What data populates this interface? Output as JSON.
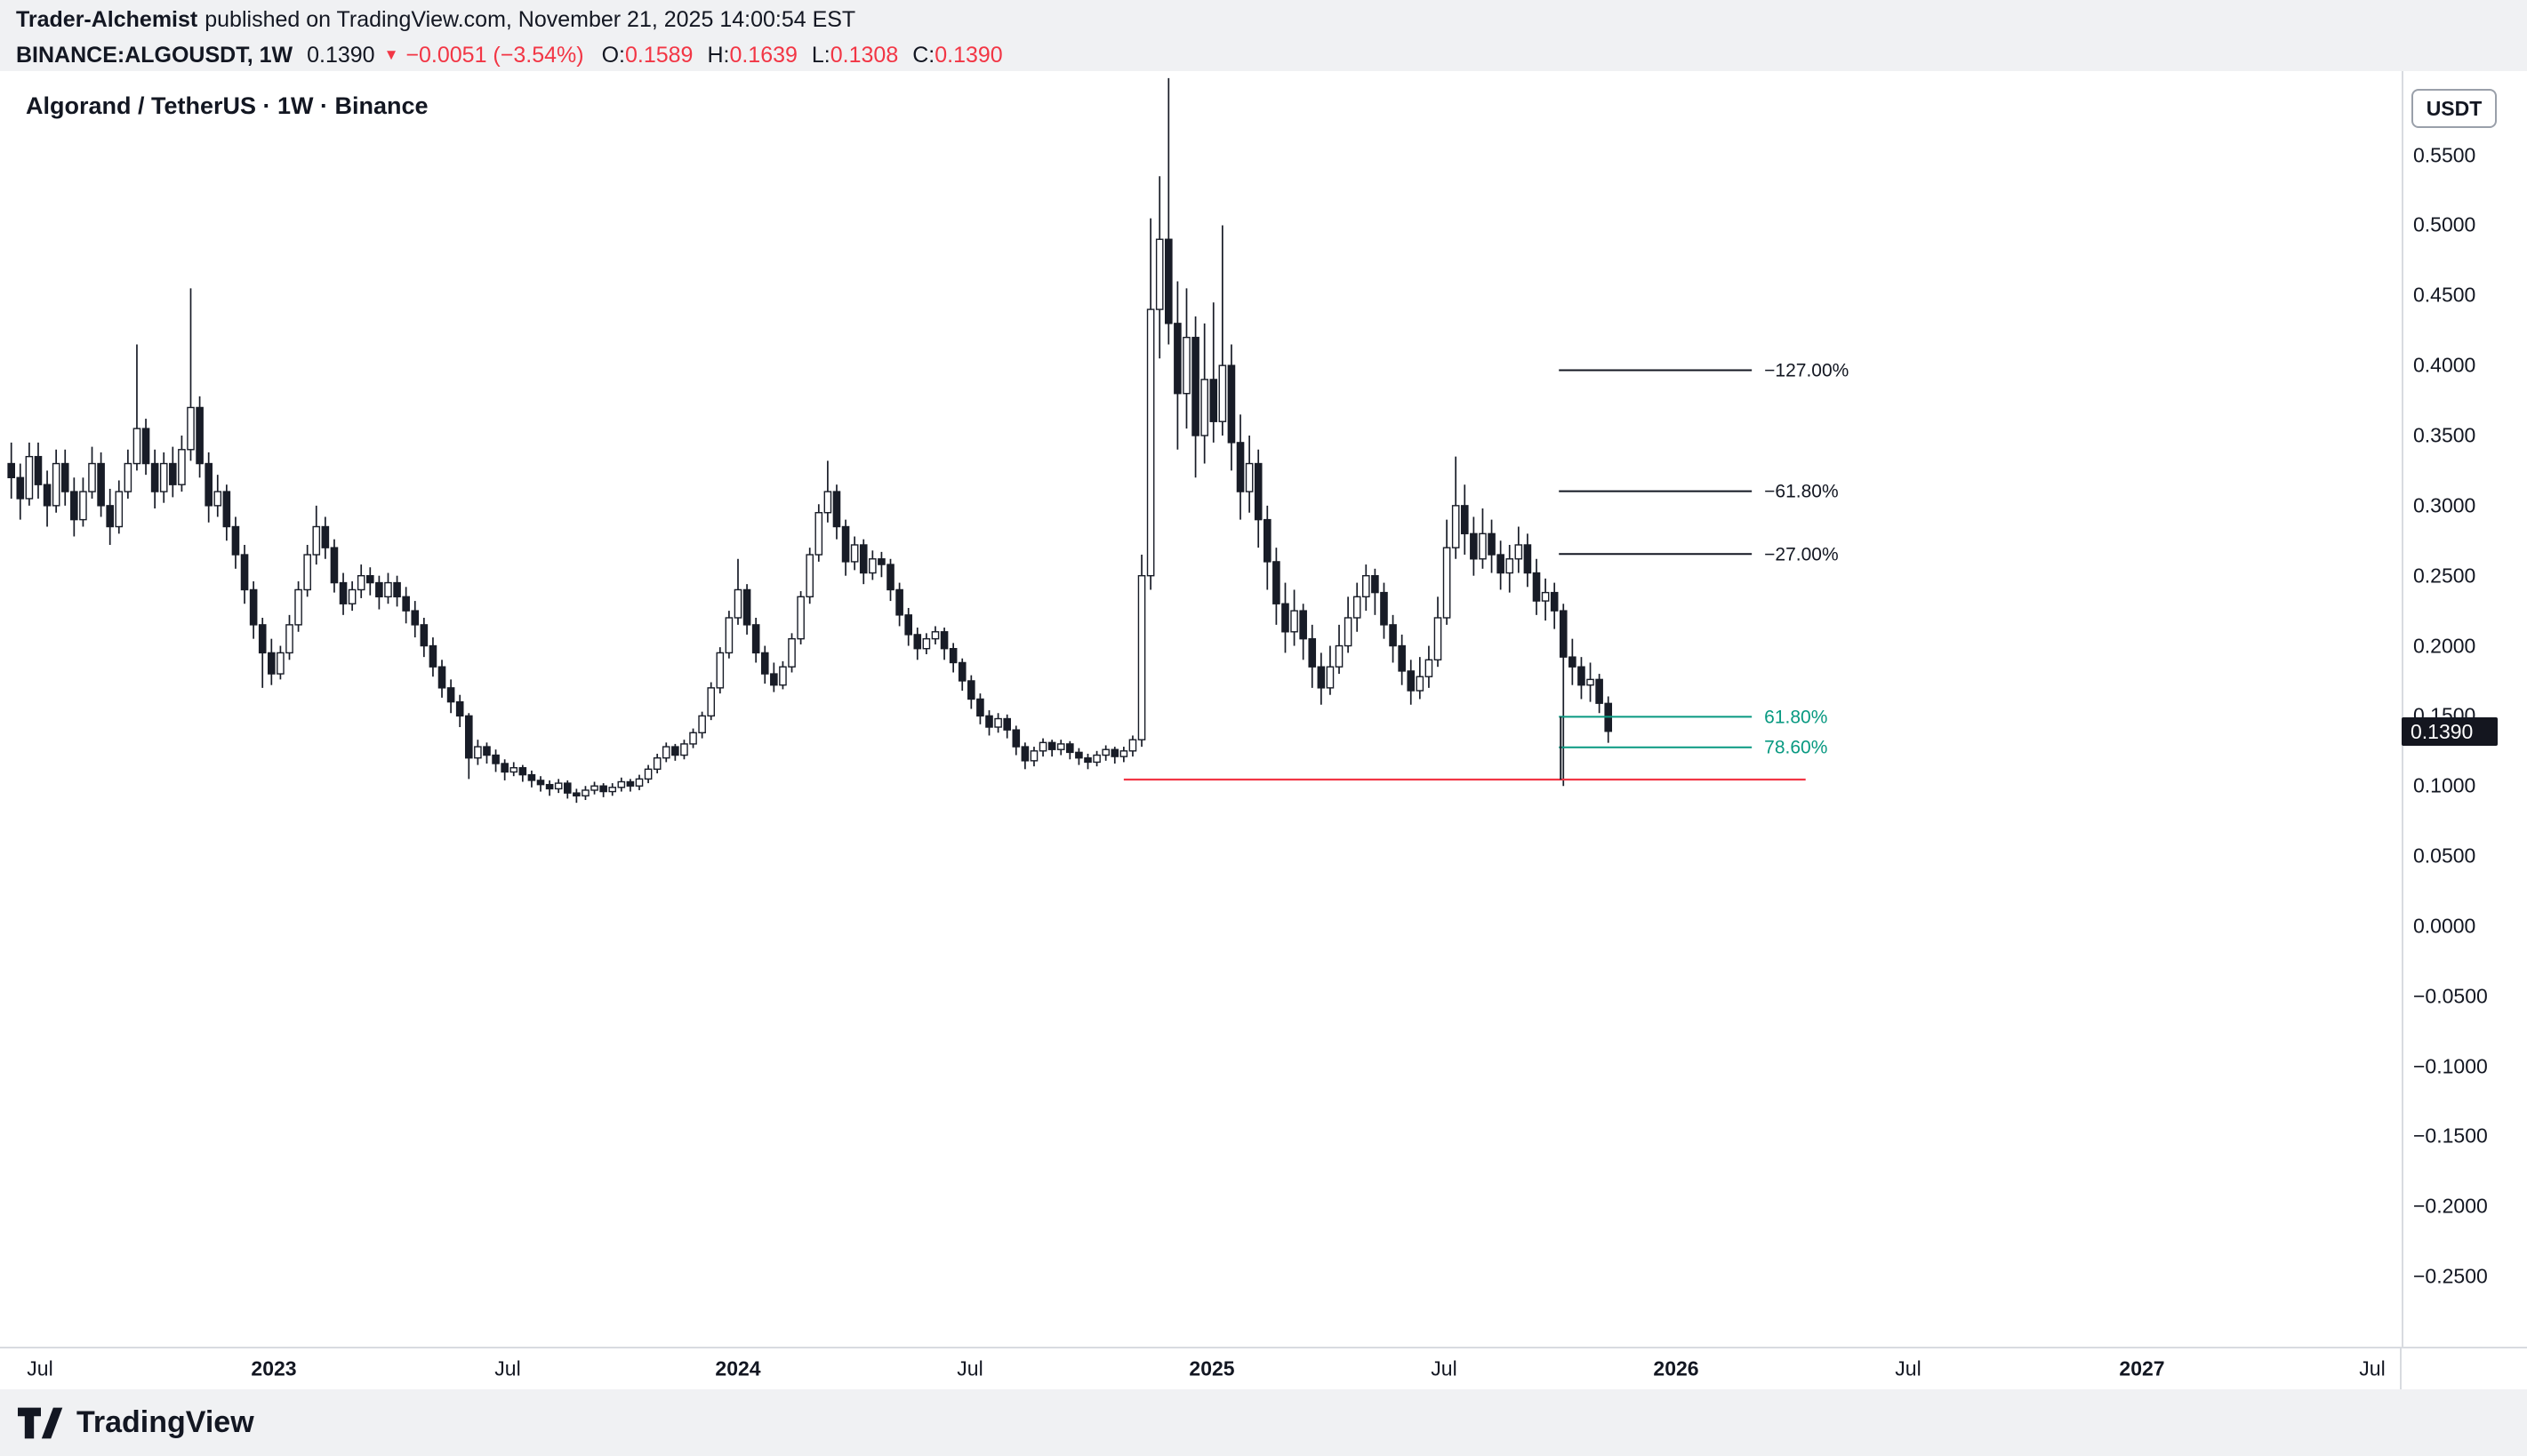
{
  "header": {
    "byline_author": "Trader-Alchemist",
    "byline_rest": "published on TradingView.com, November 21, 2025 14:00:54 EST",
    "symbol": "BINANCE:ALGOUSDT, 1W",
    "last_price": "0.1390",
    "change_icon": "▼",
    "change": "−0.0051 (−3.54%)",
    "ohlc": [
      {
        "label": "O:",
        "value": "0.1589"
      },
      {
        "label": "H:",
        "value": "0.1639"
      },
      {
        "label": "L:",
        "value": "0.1308"
      },
      {
        "label": "C:",
        "value": "0.1390"
      }
    ]
  },
  "chart": {
    "title": "Algorand / TetherUS · 1W · Binance",
    "currency_button": "USDT",
    "price_tag": "0.1390"
  },
  "axes": {
    "price_labels": [
      {
        "text": "0.5500",
        "value": 0.55
      },
      {
        "text": "0.5000",
        "value": 0.5
      },
      {
        "text": "0.4500",
        "value": 0.45
      },
      {
        "text": "0.4000",
        "value": 0.4
      },
      {
        "text": "0.3500",
        "value": 0.35
      },
      {
        "text": "0.3000",
        "value": 0.3
      },
      {
        "text": "0.2500",
        "value": 0.25
      },
      {
        "text": "0.2000",
        "value": 0.2
      },
      {
        "text": "0.1500",
        "value": 0.15
      },
      {
        "text": "0.1000",
        "value": 0.1
      },
      {
        "text": "0.0500",
        "value": 0.05
      },
      {
        "text": "0.0000",
        "value": 0.0
      },
      {
        "text": "−0.0500",
        "value": -0.05
      },
      {
        "text": "−0.1000",
        "value": -0.1
      },
      {
        "text": "−0.1500",
        "value": -0.15
      },
      {
        "text": "−0.2000",
        "value": -0.2
      },
      {
        "text": "−0.2500",
        "value": -0.25
      }
    ],
    "time_labels": [
      {
        "text": "Jul",
        "x": 45
      },
      {
        "text": "2023",
        "x": 308,
        "year": true
      },
      {
        "text": "Jul",
        "x": 571
      },
      {
        "text": "2024",
        "x": 830,
        "year": true
      },
      {
        "text": "Jul",
        "x": 1091
      },
      {
        "text": "2025",
        "x": 1363,
        "year": true
      },
      {
        "text": "Jul",
        "x": 1624
      },
      {
        "text": "2026",
        "x": 1885,
        "year": true
      },
      {
        "text": "Jul",
        "x": 2146
      },
      {
        "text": "2027",
        "x": 2409,
        "year": true
      },
      {
        "text": "Jul",
        "x": 2668
      }
    ]
  },
  "footer": {
    "brand": "TradingView"
  },
  "colors": {
    "background": "#ffffff",
    "panel": "#f0f1f3",
    "text": "#131722",
    "red": "#f23645",
    "teal": "#089981",
    "candle": "#181c27",
    "axis_border": "#d8dbe0"
  },
  "chart_data": {
    "type": "candlestick",
    "symbol": "BINANCE:ALGOUSDT",
    "timeframe": "1W",
    "title": "Algorand / TetherUS · 1W · Binance",
    "ylim": [
      -0.3,
      0.61
    ],
    "candles_ohlc": [
      [
        0.33,
        0.345,
        0.305,
        0.32
      ],
      [
        0.32,
        0.33,
        0.29,
        0.305
      ],
      [
        0.305,
        0.345,
        0.3,
        0.335
      ],
      [
        0.335,
        0.345,
        0.305,
        0.315
      ],
      [
        0.315,
        0.325,
        0.285,
        0.3
      ],
      [
        0.3,
        0.34,
        0.295,
        0.33
      ],
      [
        0.33,
        0.34,
        0.3,
        0.31
      ],
      [
        0.31,
        0.32,
        0.278,
        0.29
      ],
      [
        0.29,
        0.32,
        0.285,
        0.31
      ],
      [
        0.31,
        0.342,
        0.305,
        0.33
      ],
      [
        0.33,
        0.338,
        0.292,
        0.3
      ],
      [
        0.3,
        0.312,
        0.272,
        0.285
      ],
      [
        0.285,
        0.318,
        0.28,
        0.31
      ],
      [
        0.31,
        0.34,
        0.305,
        0.33
      ],
      [
        0.33,
        0.415,
        0.325,
        0.355
      ],
      [
        0.355,
        0.362,
        0.322,
        0.33
      ],
      [
        0.33,
        0.34,
        0.298,
        0.31
      ],
      [
        0.31,
        0.338,
        0.302,
        0.33
      ],
      [
        0.33,
        0.342,
        0.306,
        0.315
      ],
      [
        0.315,
        0.35,
        0.31,
        0.34
      ],
      [
        0.34,
        0.455,
        0.332,
        0.37
      ],
      [
        0.37,
        0.378,
        0.32,
        0.33
      ],
      [
        0.33,
        0.338,
        0.288,
        0.3
      ],
      [
        0.3,
        0.322,
        0.292,
        0.31
      ],
      [
        0.31,
        0.315,
        0.275,
        0.285
      ],
      [
        0.285,
        0.292,
        0.255,
        0.265
      ],
      [
        0.265,
        0.272,
        0.23,
        0.24
      ],
      [
        0.24,
        0.246,
        0.205,
        0.215
      ],
      [
        0.215,
        0.22,
        0.17,
        0.195
      ],
      [
        0.195,
        0.205,
        0.172,
        0.18
      ],
      [
        0.18,
        0.2,
        0.176,
        0.195
      ],
      [
        0.195,
        0.222,
        0.19,
        0.215
      ],
      [
        0.215,
        0.246,
        0.21,
        0.24
      ],
      [
        0.24,
        0.272,
        0.235,
        0.265
      ],
      [
        0.265,
        0.3,
        0.258,
        0.285
      ],
      [
        0.285,
        0.292,
        0.262,
        0.27
      ],
      [
        0.27,
        0.276,
        0.238,
        0.245
      ],
      [
        0.245,
        0.252,
        0.222,
        0.23
      ],
      [
        0.23,
        0.246,
        0.225,
        0.24
      ],
      [
        0.24,
        0.258,
        0.234,
        0.25
      ],
      [
        0.25,
        0.256,
        0.236,
        0.245
      ],
      [
        0.245,
        0.25,
        0.226,
        0.235
      ],
      [
        0.235,
        0.252,
        0.23,
        0.245
      ],
      [
        0.245,
        0.25,
        0.228,
        0.235
      ],
      [
        0.235,
        0.242,
        0.216,
        0.225
      ],
      [
        0.225,
        0.232,
        0.206,
        0.215
      ],
      [
        0.215,
        0.22,
        0.192,
        0.2
      ],
      [
        0.2,
        0.206,
        0.178,
        0.185
      ],
      [
        0.185,
        0.19,
        0.163,
        0.17
      ],
      [
        0.17,
        0.176,
        0.152,
        0.16
      ],
      [
        0.16,
        0.165,
        0.142,
        0.15
      ],
      [
        0.15,
        0.152,
        0.105,
        0.12
      ],
      [
        0.12,
        0.133,
        0.115,
        0.128
      ],
      [
        0.128,
        0.131,
        0.116,
        0.122
      ],
      [
        0.122,
        0.126,
        0.11,
        0.116
      ],
      [
        0.116,
        0.119,
        0.104,
        0.11
      ],
      [
        0.11,
        0.117,
        0.107,
        0.113
      ],
      [
        0.113,
        0.115,
        0.103,
        0.108
      ],
      [
        0.108,
        0.111,
        0.099,
        0.104
      ],
      [
        0.104,
        0.107,
        0.096,
        0.101
      ],
      [
        0.101,
        0.104,
        0.093,
        0.098
      ],
      [
        0.098,
        0.105,
        0.095,
        0.102
      ],
      [
        0.102,
        0.104,
        0.091,
        0.095
      ],
      [
        0.095,
        0.098,
        0.088,
        0.093
      ],
      [
        0.093,
        0.1,
        0.09,
        0.097
      ],
      [
        0.097,
        0.103,
        0.094,
        0.1
      ],
      [
        0.1,
        0.102,
        0.092,
        0.096
      ],
      [
        0.096,
        0.102,
        0.093,
        0.099
      ],
      [
        0.099,
        0.106,
        0.096,
        0.103
      ],
      [
        0.103,
        0.105,
        0.096,
        0.1
      ],
      [
        0.1,
        0.108,
        0.097,
        0.105
      ],
      [
        0.105,
        0.115,
        0.102,
        0.112
      ],
      [
        0.112,
        0.123,
        0.109,
        0.12
      ],
      [
        0.12,
        0.131,
        0.117,
        0.128
      ],
      [
        0.128,
        0.13,
        0.118,
        0.122
      ],
      [
        0.122,
        0.133,
        0.119,
        0.13
      ],
      [
        0.13,
        0.141,
        0.127,
        0.138
      ],
      [
        0.138,
        0.153,
        0.134,
        0.15
      ],
      [
        0.15,
        0.174,
        0.147,
        0.17
      ],
      [
        0.17,
        0.199,
        0.166,
        0.195
      ],
      [
        0.195,
        0.225,
        0.191,
        0.22
      ],
      [
        0.22,
        0.262,
        0.215,
        0.24
      ],
      [
        0.24,
        0.244,
        0.208,
        0.215
      ],
      [
        0.215,
        0.22,
        0.188,
        0.195
      ],
      [
        0.195,
        0.2,
        0.173,
        0.18
      ],
      [
        0.18,
        0.188,
        0.167,
        0.172
      ],
      [
        0.172,
        0.189,
        0.169,
        0.185
      ],
      [
        0.185,
        0.209,
        0.181,
        0.205
      ],
      [
        0.205,
        0.239,
        0.201,
        0.235
      ],
      [
        0.235,
        0.27,
        0.23,
        0.265
      ],
      [
        0.265,
        0.301,
        0.26,
        0.295
      ],
      [
        0.295,
        0.332,
        0.288,
        0.31
      ],
      [
        0.31,
        0.315,
        0.276,
        0.285
      ],
      [
        0.285,
        0.29,
        0.25,
        0.26
      ],
      [
        0.26,
        0.278,
        0.254,
        0.272
      ],
      [
        0.272,
        0.276,
        0.244,
        0.252
      ],
      [
        0.252,
        0.268,
        0.247,
        0.262
      ],
      [
        0.262,
        0.267,
        0.249,
        0.258
      ],
      [
        0.258,
        0.262,
        0.232,
        0.24
      ],
      [
        0.24,
        0.245,
        0.214,
        0.222
      ],
      [
        0.222,
        0.227,
        0.2,
        0.208
      ],
      [
        0.208,
        0.213,
        0.19,
        0.198
      ],
      [
        0.198,
        0.209,
        0.194,
        0.205
      ],
      [
        0.205,
        0.214,
        0.201,
        0.21
      ],
      [
        0.21,
        0.213,
        0.19,
        0.198
      ],
      [
        0.198,
        0.202,
        0.181,
        0.188
      ],
      [
        0.188,
        0.191,
        0.168,
        0.175
      ],
      [
        0.175,
        0.179,
        0.155,
        0.162
      ],
      [
        0.162,
        0.166,
        0.144,
        0.15
      ],
      [
        0.15,
        0.154,
        0.136,
        0.142
      ],
      [
        0.142,
        0.152,
        0.138,
        0.148
      ],
      [
        0.148,
        0.151,
        0.134,
        0.14
      ],
      [
        0.14,
        0.143,
        0.122,
        0.128
      ],
      [
        0.128,
        0.131,
        0.112,
        0.118
      ],
      [
        0.118,
        0.128,
        0.114,
        0.125
      ],
      [
        0.125,
        0.134,
        0.121,
        0.131
      ],
      [
        0.131,
        0.133,
        0.121,
        0.126
      ],
      [
        0.126,
        0.133,
        0.122,
        0.13
      ],
      [
        0.13,
        0.132,
        0.119,
        0.124
      ],
      [
        0.124,
        0.127,
        0.115,
        0.12
      ],
      [
        0.12,
        0.123,
        0.112,
        0.117
      ],
      [
        0.117,
        0.125,
        0.114,
        0.122
      ],
      [
        0.122,
        0.129,
        0.118,
        0.126
      ],
      [
        0.126,
        0.128,
        0.116,
        0.121
      ],
      [
        0.121,
        0.128,
        0.117,
        0.125
      ],
      [
        0.125,
        0.136,
        0.121,
        0.133
      ],
      [
        0.133,
        0.265,
        0.128,
        0.25
      ],
      [
        0.25,
        0.505,
        0.24,
        0.44
      ],
      [
        0.44,
        0.535,
        0.405,
        0.49
      ],
      [
        0.49,
        0.605,
        0.415,
        0.43
      ],
      [
        0.43,
        0.46,
        0.34,
        0.38
      ],
      [
        0.38,
        0.455,
        0.355,
        0.42
      ],
      [
        0.42,
        0.435,
        0.32,
        0.35
      ],
      [
        0.35,
        0.43,
        0.33,
        0.39
      ],
      [
        0.39,
        0.445,
        0.345,
        0.36
      ],
      [
        0.36,
        0.5,
        0.35,
        0.4
      ],
      [
        0.4,
        0.415,
        0.325,
        0.345
      ],
      [
        0.345,
        0.365,
        0.29,
        0.31
      ],
      [
        0.31,
        0.35,
        0.295,
        0.33
      ],
      [
        0.33,
        0.34,
        0.27,
        0.29
      ],
      [
        0.29,
        0.3,
        0.24,
        0.26
      ],
      [
        0.26,
        0.27,
        0.215,
        0.23
      ],
      [
        0.23,
        0.245,
        0.195,
        0.21
      ],
      [
        0.21,
        0.24,
        0.2,
        0.225
      ],
      [
        0.225,
        0.23,
        0.19,
        0.205
      ],
      [
        0.205,
        0.215,
        0.17,
        0.185
      ],
      [
        0.185,
        0.195,
        0.158,
        0.17
      ],
      [
        0.17,
        0.2,
        0.165,
        0.185
      ],
      [
        0.185,
        0.215,
        0.18,
        0.2
      ],
      [
        0.2,
        0.235,
        0.195,
        0.22
      ],
      [
        0.22,
        0.245,
        0.21,
        0.235
      ],
      [
        0.235,
        0.258,
        0.225,
        0.25
      ],
      [
        0.25,
        0.255,
        0.222,
        0.238
      ],
      [
        0.238,
        0.245,
        0.205,
        0.215
      ],
      [
        0.215,
        0.222,
        0.188,
        0.2
      ],
      [
        0.2,
        0.208,
        0.172,
        0.182
      ],
      [
        0.182,
        0.19,
        0.158,
        0.168
      ],
      [
        0.168,
        0.192,
        0.162,
        0.178
      ],
      [
        0.178,
        0.2,
        0.17,
        0.19
      ],
      [
        0.19,
        0.235,
        0.185,
        0.22
      ],
      [
        0.22,
        0.29,
        0.215,
        0.27
      ],
      [
        0.27,
        0.335,
        0.262,
        0.3
      ],
      [
        0.3,
        0.315,
        0.265,
        0.28
      ],
      [
        0.28,
        0.292,
        0.25,
        0.262
      ],
      [
        0.262,
        0.298,
        0.255,
        0.28
      ],
      [
        0.28,
        0.29,
        0.252,
        0.265
      ],
      [
        0.265,
        0.275,
        0.24,
        0.252
      ],
      [
        0.252,
        0.272,
        0.238,
        0.262
      ],
      [
        0.262,
        0.285,
        0.252,
        0.272
      ],
      [
        0.272,
        0.28,
        0.242,
        0.252
      ],
      [
        0.252,
        0.262,
        0.222,
        0.232
      ],
      [
        0.232,
        0.248,
        0.218,
        0.238
      ],
      [
        0.238,
        0.245,
        0.212,
        0.225
      ],
      [
        0.225,
        0.23,
        0.1,
        0.192
      ],
      [
        0.192,
        0.205,
        0.172,
        0.185
      ],
      [
        0.185,
        0.192,
        0.162,
        0.172
      ],
      [
        0.172,
        0.188,
        0.16,
        0.176
      ],
      [
        0.176,
        0.18,
        0.152,
        0.159
      ],
      [
        0.1589,
        0.1639,
        0.1308,
        0.139
      ]
    ],
    "fib_levels": [
      {
        "label": "−127.00%",
        "price": 0.3966,
        "color": "#131722",
        "i1": 172.5,
        "i2": 194
      },
      {
        "label": "−61.80%",
        "price": 0.3103,
        "color": "#131722",
        "i1": 172.5,
        "i2": 194
      },
      {
        "label": "−27.00%",
        "price": 0.2655,
        "color": "#131722",
        "i1": 172.5,
        "i2": 194
      },
      {
        "label": "61.80%",
        "price": 0.1494,
        "color": "#089981",
        "i1": 172.5,
        "i2": 194
      },
      {
        "label": "78.60%",
        "price": 0.1276,
        "color": "#089981",
        "i1": 172.5,
        "i2": 194
      }
    ],
    "support_line": {
      "price": 0.1046,
      "color": "#f23645",
      "i1": 124,
      "i2": 200
    },
    "anchor_vline": {
      "i": 172.7,
      "p1": 0.1494,
      "p2": 0.1046
    }
  }
}
